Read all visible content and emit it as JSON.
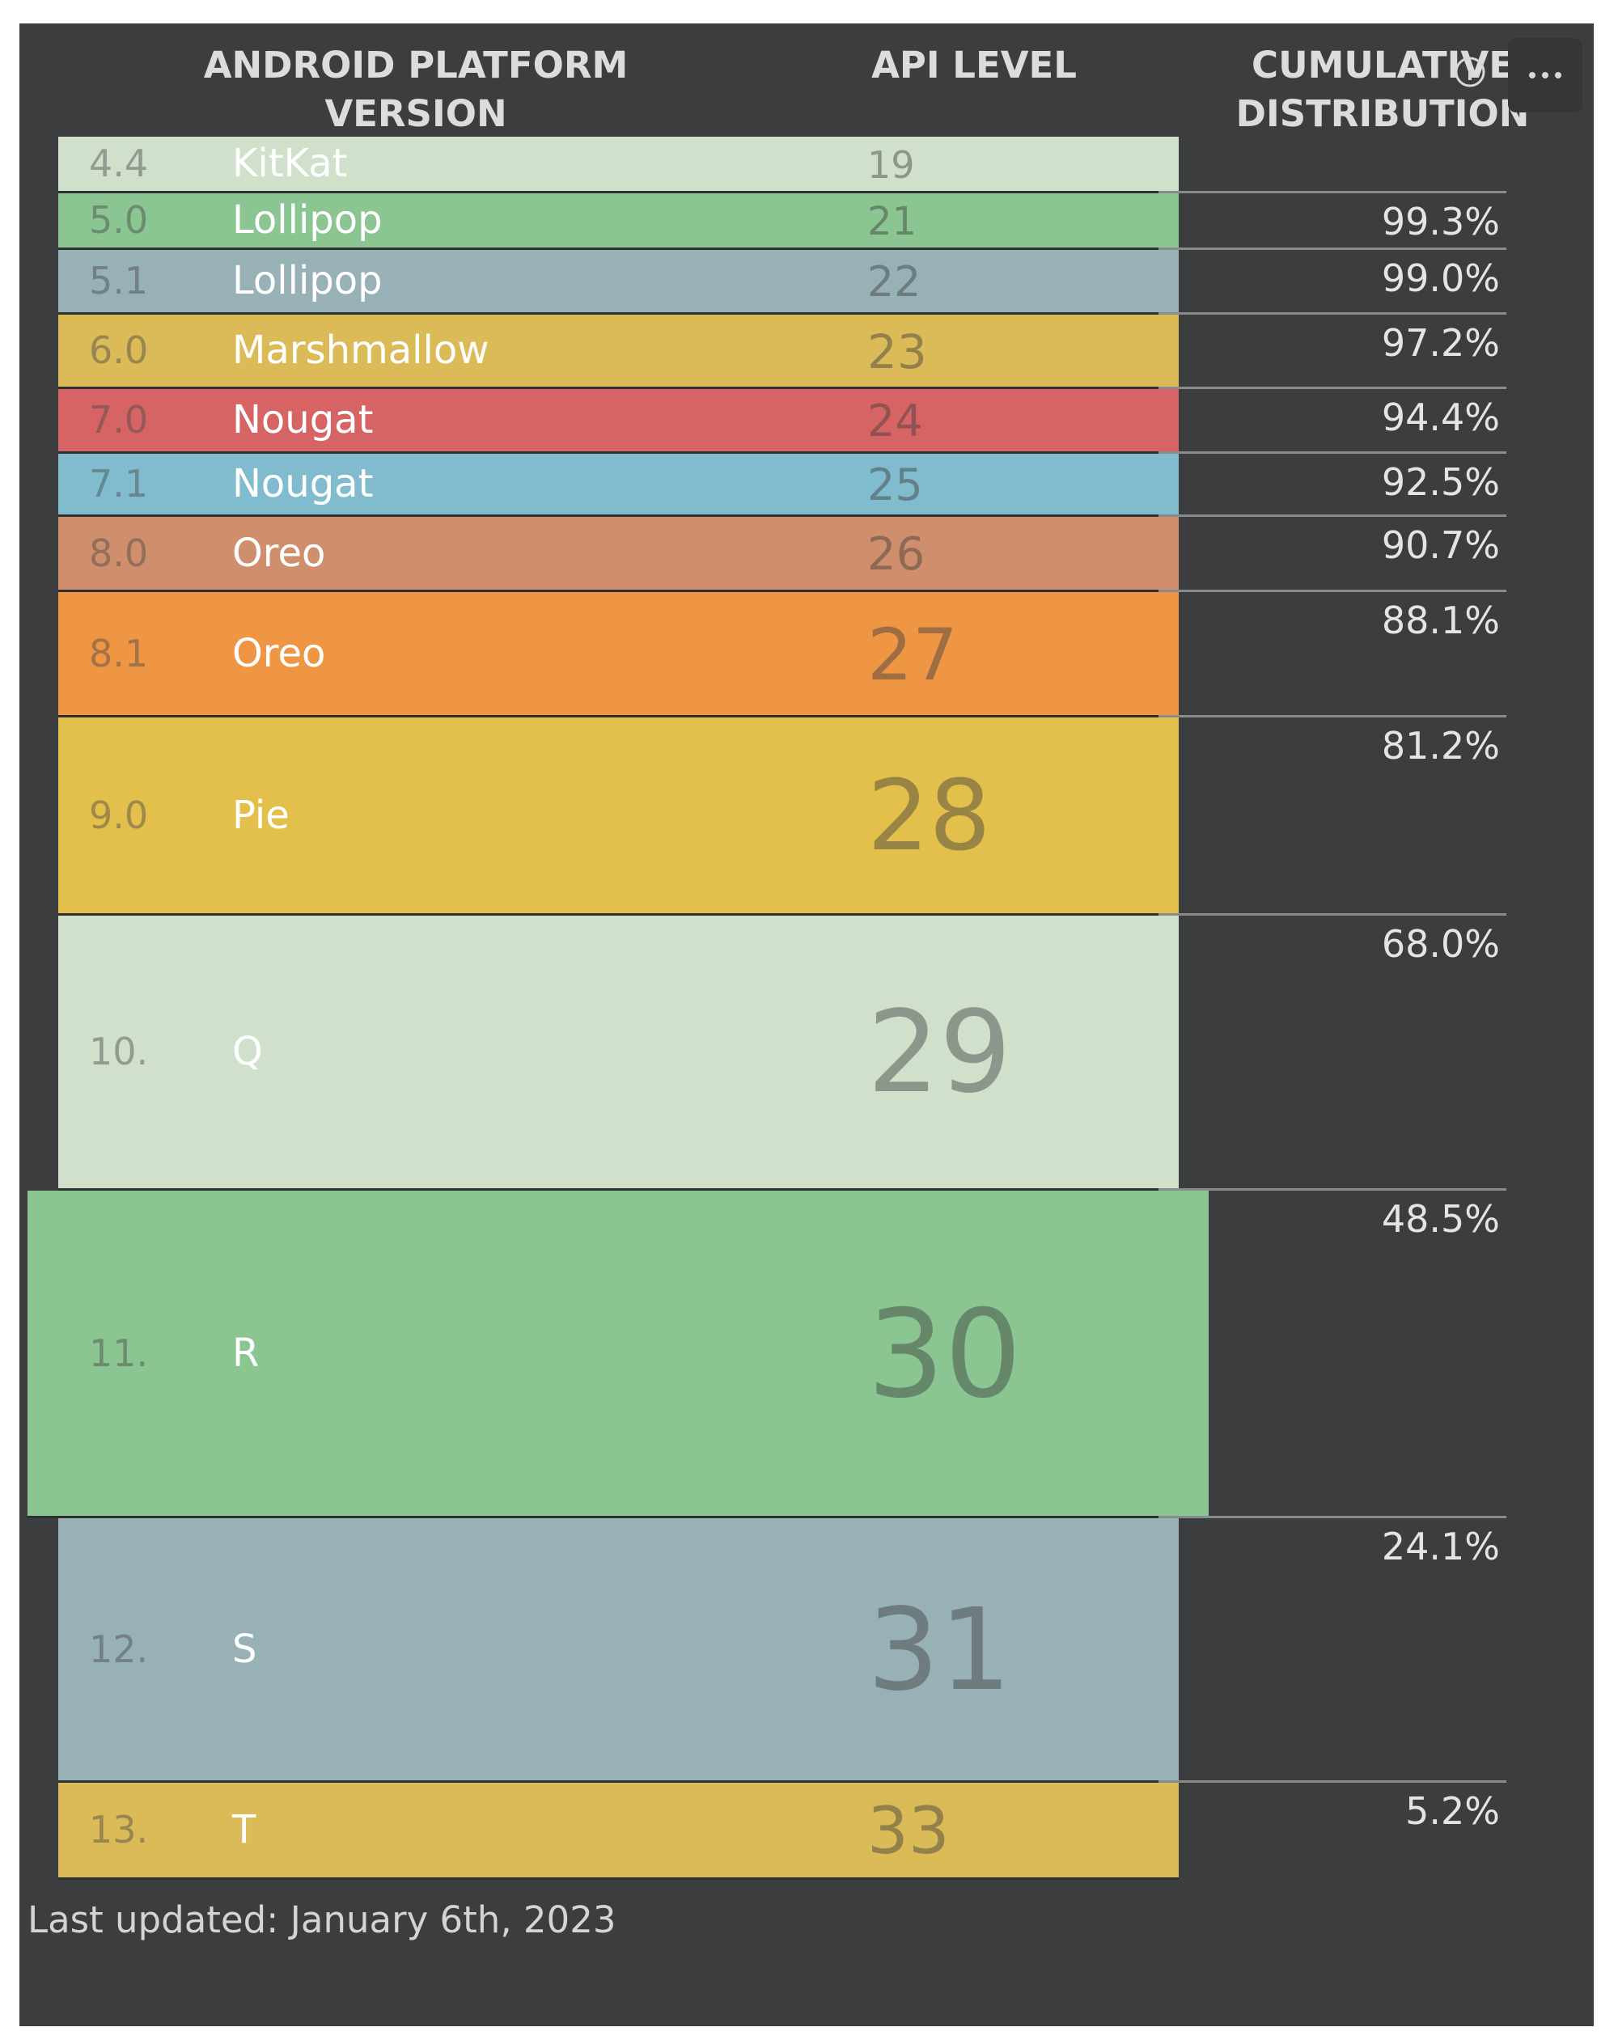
{
  "header": {
    "version": "ANDROID PLATFORM\nVERSION",
    "api": "API LEVEL",
    "cumulative": "CUMULATIVE\nDISTRIBUTION"
  },
  "menu": {
    "icon": "more-horizontal-icon"
  },
  "rows": [
    {
      "version": "4.4",
      "name": "KitKat",
      "api": "19",
      "cumulative": "",
      "color": "#d0e0cb"
    },
    {
      "version": "5.0",
      "name": "Lollipop",
      "api": "21",
      "cumulative": "99.3%",
      "color": "#8bc591"
    },
    {
      "version": "5.1",
      "name": "Lollipop",
      "api": "22",
      "cumulative": "99.0%",
      "color": "#97b1b6"
    },
    {
      "version": "6.0",
      "name": "Marshmallow",
      "api": "23",
      "cumulative": "97.2%",
      "color": "#dbba58"
    },
    {
      "version": "7.0",
      "name": "Nougat",
      "api": "24",
      "cumulative": "94.4%",
      "color": "#d66464"
    },
    {
      "version": "7.1",
      "name": "Nougat",
      "api": "25",
      "cumulative": "92.5%",
      "color": "#80bccd"
    },
    {
      "version": "8.0",
      "name": "Oreo",
      "api": "26",
      "cumulative": "90.7%",
      "color": "#cf8e6c"
    },
    {
      "version": "8.1",
      "name": "Oreo",
      "api": "27",
      "cumulative": "88.1%",
      "color": "#ef9645"
    },
    {
      "version": "9.0",
      "name": "Pie",
      "api": "28",
      "cumulative": "81.2%",
      "color": "#e3bf4c"
    },
    {
      "version": "10.",
      "name": "Q",
      "api": "29",
      "cumulative": "68.0%",
      "color": "#d0e0cb"
    },
    {
      "version": "11.",
      "name": "R",
      "api": "30",
      "cumulative": "48.5%",
      "color": "#8bc591"
    },
    {
      "version": "12.",
      "name": "S",
      "api": "31",
      "cumulative": "24.1%",
      "color": "#97b1b6"
    },
    {
      "version": "13.",
      "name": "T",
      "api": "33",
      "cumulative": "5.2%",
      "color": "#dbba58"
    }
  ],
  "footer": {
    "text": "Last updated: January 6th, 2023"
  }
}
